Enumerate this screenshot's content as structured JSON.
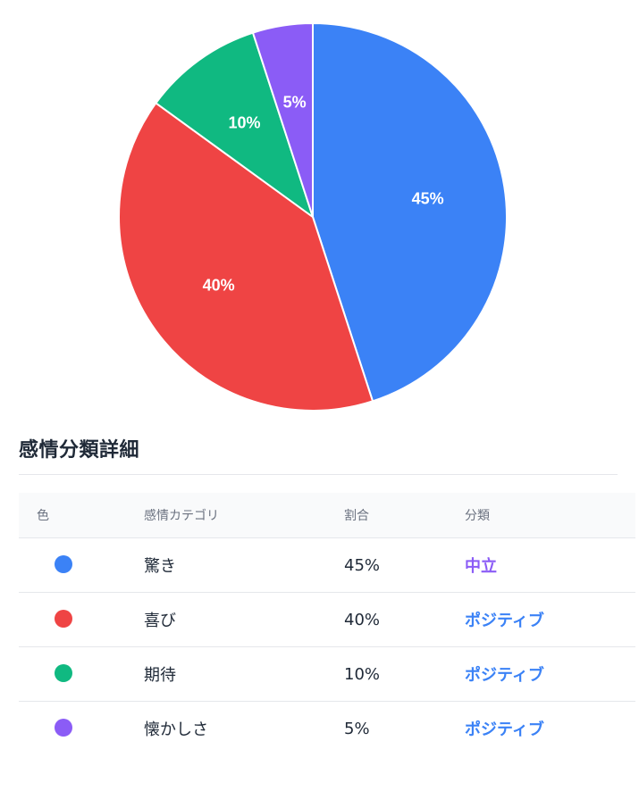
{
  "chart_data": {
    "type": "pie",
    "categories": [
      "驚き",
      "喜び",
      "期待",
      "懐かしさ"
    ],
    "values": [
      45,
      40,
      10,
      5
    ],
    "labels": [
      "45%",
      "40%",
      "10%",
      "5%"
    ],
    "colors": [
      "#3b82f6",
      "#ef4444",
      "#10b981",
      "#8b5cf6"
    ],
    "title": "",
    "legend": "none"
  },
  "details": {
    "title": "感情分類詳細",
    "headers": {
      "color": "色",
      "category": "感情カテゴリ",
      "ratio": "割合",
      "classification": "分類"
    },
    "rows": [
      {
        "color": "#3b82f6",
        "category": "驚き",
        "ratio": "45%",
        "classification": "中立",
        "class_color": "#8b5cf6"
      },
      {
        "color": "#ef4444",
        "category": "喜び",
        "ratio": "40%",
        "classification": "ポジティブ",
        "class_color": "#3b82f6"
      },
      {
        "color": "#10b981",
        "category": "期待",
        "ratio": "10%",
        "classification": "ポジティブ",
        "class_color": "#3b82f6"
      },
      {
        "color": "#8b5cf6",
        "category": "懐かしさ",
        "ratio": "5%",
        "classification": "ポジティブ",
        "class_color": "#3b82f6"
      }
    ]
  }
}
